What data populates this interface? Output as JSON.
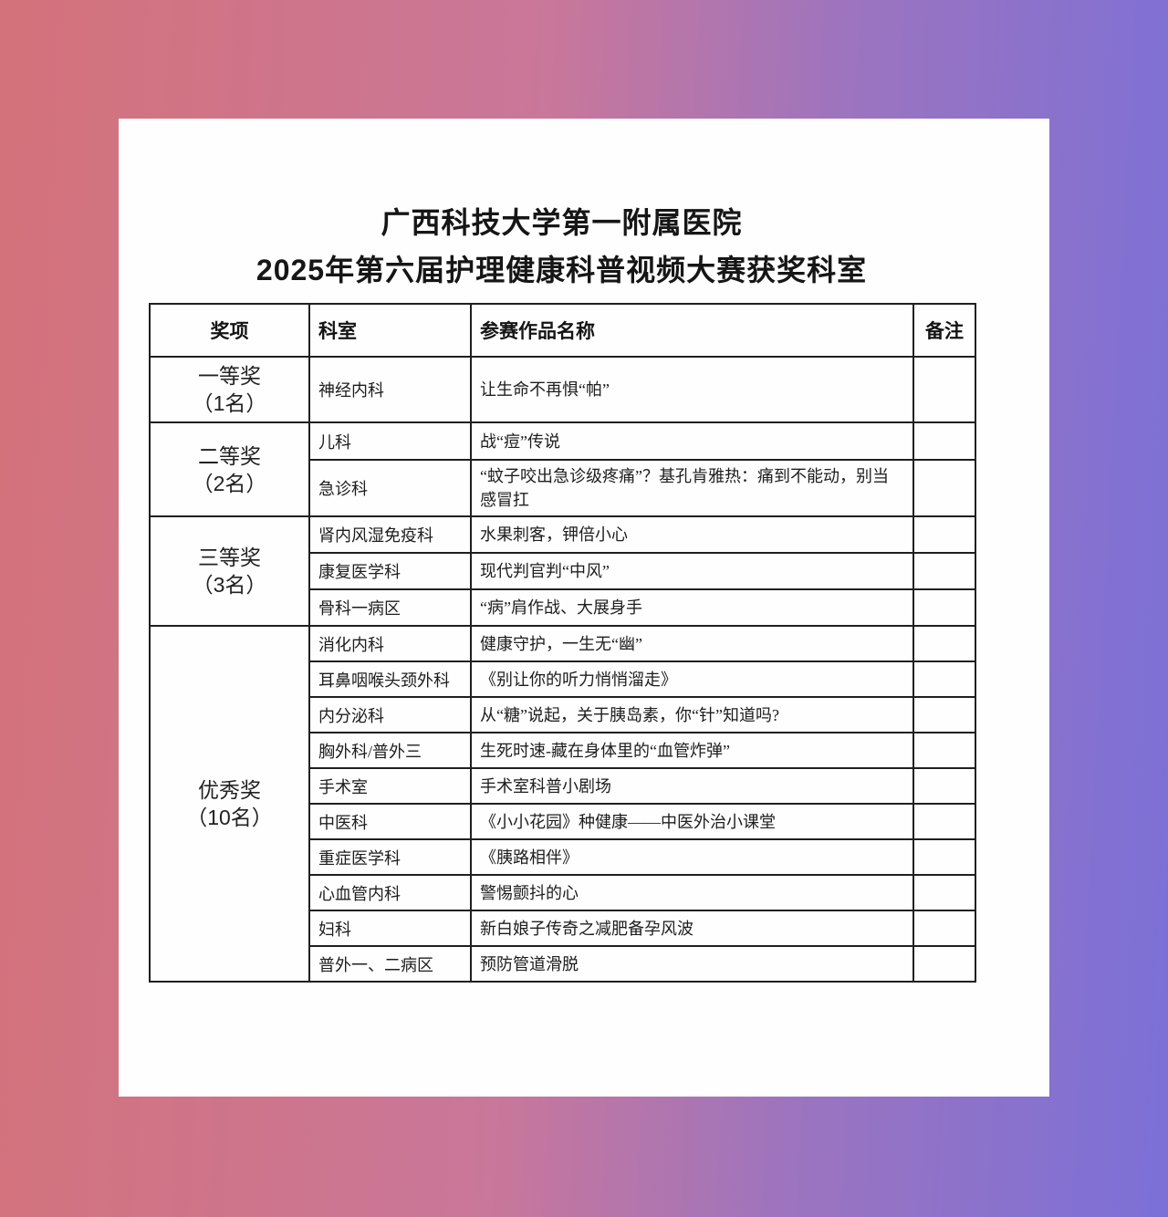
{
  "title": "广西科技大学第一附属医院",
  "subtitle": "2025年第六届护理健康科普视频大赛获奖科室",
  "colors": {
    "gradient_left": "#d4727a",
    "gradient_right": "#7b70d7",
    "card_bg": "#fefefe",
    "border": "#1f1f1f",
    "text": "#1b1b1b"
  },
  "table": {
    "headers": [
      "奖项",
      "科室",
      "参赛作品名称",
      "备注"
    ],
    "groups": [
      {
        "award": "一等奖",
        "count": "（1名）",
        "rows": [
          {
            "dept": "神经内科",
            "work": "让生命不再惧“帕”",
            "note": ""
          }
        ]
      },
      {
        "award": "二等奖",
        "count": "（2名）",
        "rows": [
          {
            "dept": "儿科",
            "work": "战“痘”传说",
            "note": ""
          },
          {
            "dept": "急诊科",
            "work": "“蚊子咬出急诊级疼痛”？基孔肯雅热：痛到不能动，别当感冒扛",
            "note": ""
          }
        ]
      },
      {
        "award": "三等奖",
        "count": "（3名）",
        "rows": [
          {
            "dept": "肾内风湿免疫科",
            "work": "水果刺客，钾倍小心",
            "note": ""
          },
          {
            "dept": "康复医学科",
            "work": "现代判官判“中风”",
            "note": ""
          },
          {
            "dept": "骨科一病区",
            "work": "“病”肩作战、大展身手",
            "note": ""
          }
        ]
      },
      {
        "award": "优秀奖",
        "count": "（10名）",
        "rows": [
          {
            "dept": "消化内科",
            "work": "健康守护，一生无“幽”",
            "note": ""
          },
          {
            "dept": "耳鼻咽喉头颈外科",
            "work": "《别让你的听力悄悄溜走》",
            "note": ""
          },
          {
            "dept": "内分泌科",
            "work": "从“糖”说起，关于胰岛素，你“针”知道吗?",
            "note": ""
          },
          {
            "dept": "胸外科/普外三",
            "work": "生死时速-藏在身体里的“血管炸弹”",
            "note": ""
          },
          {
            "dept": "手术室",
            "work": "手术室科普小剧场",
            "note": ""
          },
          {
            "dept": "中医科",
            "work": "《小小花园》种健康——中医外治小课堂",
            "note": ""
          },
          {
            "dept": "重症医学科",
            "work": "《胰路相伴》",
            "note": ""
          },
          {
            "dept": "心血管内科",
            "work": "警惕颤抖的心",
            "note": ""
          },
          {
            "dept": "妇科",
            "work": "新白娘子传奇之减肥备孕风波",
            "note": ""
          },
          {
            "dept": "普外一、二病区",
            "work": "预防管道滑脱",
            "note": ""
          }
        ]
      }
    ]
  }
}
